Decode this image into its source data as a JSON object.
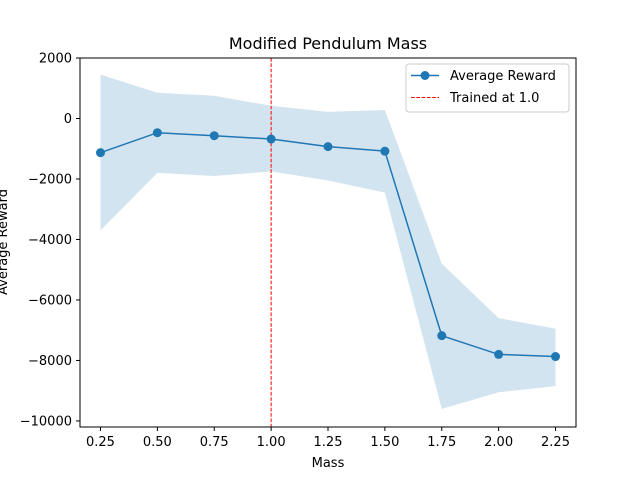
{
  "chart_data": {
    "type": "line",
    "title": "Modified Pendulum Mass",
    "xlabel": "Mass",
    "ylabel": "Average Reward",
    "xlim": [
      0.16,
      2.34
    ],
    "ylim": [
      -10200,
      2000
    ],
    "xticks": [
      0.25,
      0.5,
      0.75,
      1.0,
      1.25,
      1.5,
      1.75,
      2.0,
      2.25
    ],
    "xtick_labels": [
      "0.25",
      "0.50",
      "0.75",
      "1.00",
      "1.25",
      "1.50",
      "1.75",
      "2.00",
      "2.25"
    ],
    "yticks": [
      -10000,
      -8000,
      -6000,
      -4000,
      -2000,
      0,
      2000
    ],
    "ytick_labels": [
      "−10000",
      "−8000",
      "−6000",
      "−4000",
      "−2000",
      "0",
      "2000"
    ],
    "grid": false,
    "legend_placement": "top-right",
    "x": [
      0.25,
      0.5,
      0.75,
      1.0,
      1.25,
      1.5,
      1.75,
      2.0,
      2.25
    ],
    "series": [
      {
        "name": "Average Reward",
        "color": "#1f77b4",
        "values": [
          -1130,
          -470,
          -570,
          -680,
          -930,
          -1080,
          -7180,
          -7800,
          -7870
        ]
      }
    ],
    "band": {
      "color": "#1f77b4",
      "upper": [
        1450,
        850,
        750,
        420,
        220,
        280,
        -4800,
        -6600,
        -6950
      ],
      "lower": [
        -3700,
        -1800,
        -1900,
        -1750,
        -2050,
        -2450,
        -9600,
        -9050,
        -8850
      ]
    },
    "reference_line": {
      "name": "Trained at 1.0",
      "x": 1.0,
      "color": "#ff0000"
    }
  }
}
